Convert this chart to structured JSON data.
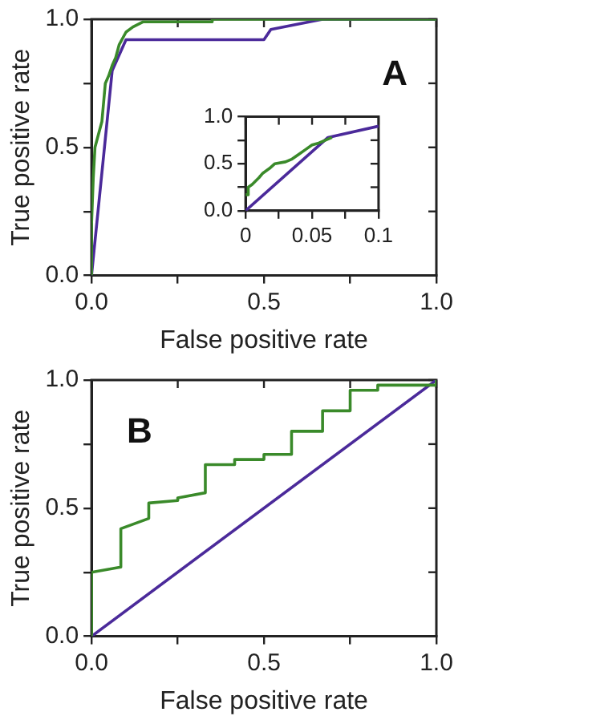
{
  "chart_data": [
    {
      "type": "line",
      "xlabel": "False positive rate",
      "ylabel": "True positive rate",
      "annotations": [
        "A"
      ],
      "grid": false,
      "marker": "none",
      "line_style": "solid",
      "xlim": [
        0,
        1
      ],
      "ylim": [
        0,
        1
      ],
      "xticks": [
        {
          "value": 0,
          "label": "0.0"
        },
        {
          "value": 0.25,
          "label": null
        },
        0.5,
        {
          "value": 0.75,
          "label": null
        },
        {
          "value": 1,
          "label": "1.0"
        }
      ],
      "yticks": [
        {
          "value": 0,
          "label": "0.0"
        },
        {
          "value": 0.25,
          "label": null
        },
        {
          "value": 0.5,
          "label": "0.5"
        },
        {
          "value": 0.75,
          "label": null
        },
        {
          "value": 1,
          "label": "1.0"
        }
      ],
      "series": [
        {
          "color": "#3a8a2a",
          "x": [
            0,
            0,
            0.005,
            0.01,
            0.02,
            0.03,
            0.04,
            0.05,
            0.06,
            0.07,
            0.08,
            0.1,
            0.12,
            0.15,
            0.35,
            0.35,
            1
          ],
          "values": [
            0,
            0.2,
            0.38,
            0.5,
            0.55,
            0.6,
            0.75,
            0.78,
            0.82,
            0.85,
            0.9,
            0.95,
            0.97,
            0.99,
            0.99,
            1,
            1
          ]
        },
        {
          "color": "#4b2a9a",
          "x": [
            0,
            0.06,
            0.1,
            0.5,
            0.52,
            0.67,
            1
          ],
          "values": [
            0,
            0.8,
            0.92,
            0.92,
            0.96,
            1,
            1
          ]
        }
      ]
    },
    {
      "type": "line",
      "grid": false,
      "marker": "none",
      "line_style": "solid",
      "xlim": [
        0,
        0.1
      ],
      "ylim": [
        0,
        1
      ],
      "xticks": [
        0,
        {
          "value": 0.025,
          "label": null
        },
        0.05,
        {
          "value": 0.075,
          "label": null
        },
        0.1
      ],
      "yticks": [
        {
          "value": 0,
          "label": "0.0"
        },
        {
          "value": 0.25,
          "label": null
        },
        {
          "value": 0.5,
          "label": "0.5"
        },
        {
          "value": 0.75,
          "label": null
        },
        {
          "value": 1,
          "label": "1.0"
        }
      ],
      "series": [
        {
          "color": "#3a8a2a",
          "x": [
            0,
            0,
            0.002,
            0.002,
            0.005,
            0.01,
            0.013,
            0.018,
            0.022,
            0.03,
            0.035,
            0.04,
            0.045,
            0.05,
            0.055,
            0.06,
            0.065
          ],
          "values": [
            0.17,
            0.17,
            0.17,
            0.25,
            0.28,
            0.35,
            0.4,
            0.45,
            0.5,
            0.52,
            0.55,
            0.6,
            0.65,
            0.7,
            0.72,
            0.75,
            0.78
          ]
        },
        {
          "color": "#4b2a9a",
          "x": [
            0,
            0.062,
            0.1
          ],
          "values": [
            0,
            0.78,
            0.9
          ]
        }
      ]
    },
    {
      "type": "line",
      "xlabel": "False positive rate",
      "ylabel": "True positive rate",
      "annotations": [
        "B"
      ],
      "grid": false,
      "marker": "none",
      "line_style": "solid",
      "xlim": [
        0,
        1
      ],
      "ylim": [
        0,
        1
      ],
      "xticks": [
        {
          "value": 0,
          "label": "0.0"
        },
        {
          "value": 0.25,
          "label": null
        },
        0.5,
        {
          "value": 0.75,
          "label": null
        },
        {
          "value": 1,
          "label": "1.0"
        }
      ],
      "yticks": [
        {
          "value": 0,
          "label": "0.0"
        },
        {
          "value": 0.25,
          "label": null
        },
        {
          "value": 0.5,
          "label": "0.5"
        },
        {
          "value": 0.75,
          "label": null
        },
        {
          "value": 1,
          "label": "1.0"
        }
      ],
      "series": [
        {
          "color": "#3a8a2a",
          "x": [
            0,
            0,
            0.085,
            0.085,
            0.166,
            0.166,
            0.25,
            0.25,
            0.33,
            0.33,
            0.415,
            0.415,
            0.5,
            0.5,
            0.58,
            0.58,
            0.67,
            0.67,
            0.75,
            0.75,
            0.83,
            0.83,
            1,
            1
          ],
          "values": [
            0,
            0.25,
            0.27,
            0.42,
            0.46,
            0.52,
            0.53,
            0.54,
            0.56,
            0.67,
            0.67,
            0.69,
            0.69,
            0.71,
            0.71,
            0.8,
            0.8,
            0.88,
            0.88,
            0.96,
            0.96,
            0.98,
            0.98,
            1
          ]
        },
        {
          "color": "#4b2a9a",
          "x": [
            0,
            1
          ],
          "values": [
            0,
            1
          ]
        }
      ]
    }
  ]
}
